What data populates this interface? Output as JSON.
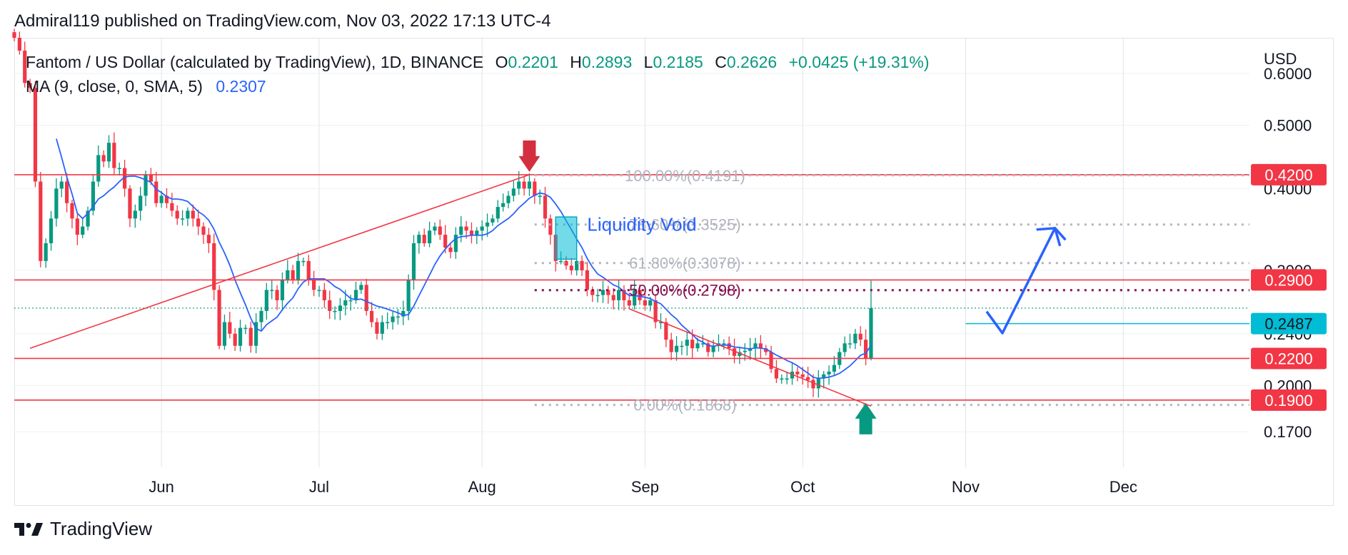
{
  "header": {
    "published": "Admiral119 published on TradingView.com, Nov 03, 2022 17:13 UTC-4"
  },
  "legend": {
    "symbol": "Fantom / US Dollar (calculated by TradingView), 1D, BINANCE",
    "open_key": "O",
    "open": "0.2201",
    "high_key": "H",
    "high": "0.2893",
    "low_key": "L",
    "low": "0.2185",
    "close_key": "C",
    "close": "0.2626",
    "change": "+0.0425 (+19.31%)",
    "ma_label": "MA (9, close, 0, SMA, 5)",
    "ma_value": "0.2307"
  },
  "footer": {
    "brand": "TradingView"
  },
  "colors": {
    "up": "#089981",
    "down": "#f23645",
    "ma": "#2962ff",
    "fib": "#b2b5be",
    "fib50": "#880e4f",
    "level": "#f23645",
    "current": "#00bcd4"
  },
  "chart_data": {
    "type": "candlestick",
    "currency": "USD",
    "x_axis": {
      "type": "date",
      "ticks": [
        "Jun",
        "Jul",
        "Aug",
        "Sep",
        "Oct",
        "Nov",
        "Dec"
      ],
      "tick_dates": [
        "2022-06-01",
        "2022-07-01",
        "2022-08-01",
        "2022-09-01",
        "2022-10-01",
        "2022-11-01",
        "2022-12-01"
      ],
      "range": [
        "2022-05-04",
        "2022-12-25"
      ]
    },
    "y_axis": {
      "scale": "log",
      "range": [
        0.15,
        0.68
      ],
      "ticks": [
        "0.6000",
        "0.5000",
        "0.4000",
        "0.3000",
        "0.2400",
        "0.2000",
        "0.1700"
      ]
    },
    "grid": true,
    "horizontal_levels": [
      {
        "price": 0.42,
        "label": "0.4200"
      },
      {
        "price": 0.29,
        "label": "0.2900"
      },
      {
        "price": 0.22,
        "label": "0.2200"
      },
      {
        "price": 0.19,
        "label": "0.1900"
      }
    ],
    "current_price": {
      "price": 0.2487,
      "label": "0.2487"
    },
    "fib_levels": [
      {
        "label": "100.00%(0.4191)",
        "price": 0.4191
      },
      {
        "label": "78.60%(0.3525)",
        "price": 0.3525
      },
      {
        "label": "61.80%(0.3078)",
        "price": 0.3078
      },
      {
        "label": "50.00%(0.2798)",
        "price": 0.2798
      },
      {
        "label": "0.00%(0.1868)",
        "price": 0.1868
      }
    ],
    "annotations": [
      {
        "type": "text",
        "text": "Liquidity Void",
        "date": "2022-08-21",
        "price": 0.345
      },
      {
        "type": "rect",
        "date_from": "2022-08-15",
        "date_to": "2022-08-19",
        "price_from": 0.312,
        "price_to": 0.362
      },
      {
        "type": "arrow-down",
        "date": "2022-08-10",
        "price": 0.42
      },
      {
        "type": "arrow-up",
        "date": "2022-10-13",
        "price": 0.19
      },
      {
        "type": "line",
        "points": [
          [
            "2022-05-07",
            0.228
          ],
          [
            "2022-08-10",
            0.42
          ]
        ]
      },
      {
        "type": "line",
        "points": [
          [
            "2022-08-29",
            0.262
          ],
          [
            "2022-10-14",
            0.186
          ]
        ]
      },
      {
        "type": "polyline",
        "points": [
          [
            "2022-11-05",
            0.2595
          ],
          [
            "2022-11-08",
            0.2405
          ],
          [
            "2022-11-18",
            0.348
          ],
          [
            "2022-11-20",
            0.334
          ]
        ]
      }
    ],
    "ma": {
      "period": 9,
      "value": 0.2307
    },
    "last_candle": {
      "open": 0.2201,
      "high": 0.2893,
      "low": 0.2185,
      "close": 0.2626
    },
    "close_series": [
      0.68,
      0.65,
      0.58,
      0.57,
      0.41,
      0.31,
      0.33,
      0.36,
      0.4,
      0.41,
      0.38,
      0.36,
      0.34,
      0.35,
      0.37,
      0.41,
      0.45,
      0.44,
      0.47,
      0.43,
      0.43,
      0.4,
      0.36,
      0.37,
      0.39,
      0.42,
      0.41,
      0.38,
      0.39,
      0.38,
      0.37,
      0.36,
      0.36,
      0.37,
      0.36,
      0.35,
      0.34,
      0.33,
      0.28,
      0.23,
      0.25,
      0.24,
      0.23,
      0.245,
      0.245,
      0.23,
      0.25,
      0.26,
      0.28,
      0.28,
      0.27,
      0.29,
      0.3,
      0.29,
      0.31,
      0.31,
      0.29,
      0.28,
      0.28,
      0.27,
      0.26,
      0.26,
      0.265,
      0.27,
      0.27,
      0.28,
      0.285,
      0.26,
      0.25,
      0.24,
      0.25,
      0.25,
      0.255,
      0.255,
      0.26,
      0.29,
      0.33,
      0.34,
      0.33,
      0.345,
      0.35,
      0.34,
      0.325,
      0.32,
      0.34,
      0.35,
      0.345,
      0.34,
      0.345,
      0.35,
      0.355,
      0.36,
      0.375,
      0.38,
      0.39,
      0.4,
      0.41,
      0.4,
      0.41,
      0.39,
      0.39,
      0.36,
      0.34,
      0.31,
      0.31,
      0.305,
      0.3,
      0.31,
      0.3,
      0.28,
      0.275,
      0.275,
      0.28,
      0.275,
      0.27,
      0.28,
      0.27,
      0.265,
      0.28,
      0.27,
      0.265,
      0.27,
      0.25,
      0.25,
      0.235,
      0.225,
      0.23,
      0.23,
      0.235,
      0.228,
      0.232,
      0.232,
      0.225,
      0.23,
      0.232,
      0.232,
      0.228,
      0.222,
      0.225,
      0.226,
      0.228,
      0.232,
      0.228,
      0.225,
      0.212,
      0.205,
      0.205,
      0.205,
      0.21,
      0.208,
      0.206,
      0.204,
      0.198,
      0.205,
      0.208,
      0.21,
      0.215,
      0.225,
      0.232,
      0.232,
      0.24,
      0.235,
      0.2201,
      0.2626
    ]
  }
}
